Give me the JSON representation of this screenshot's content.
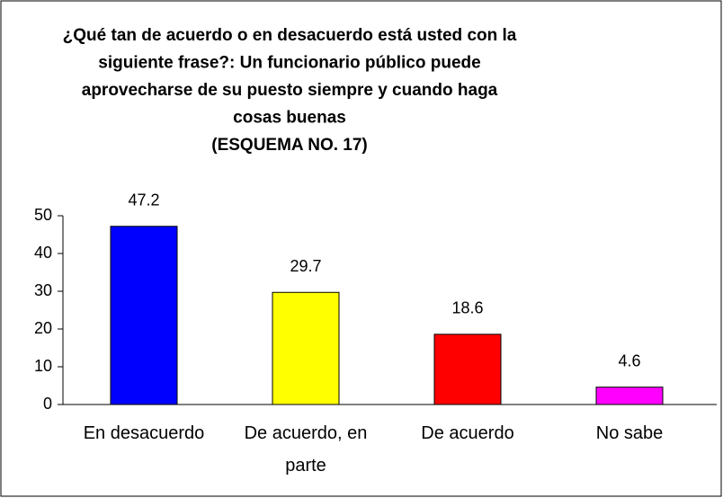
{
  "chart_data": {
    "type": "bar",
    "title": [
      "¿Qué tan de acuerdo o en desacuerdo está usted con la",
      "siguiente frase?: Un funcionario público puede",
      "aprovecharse de su puesto siempre y cuando haga",
      "cosas buenas"
    ],
    "subtitle": "(ESQUEMA NO. 17)",
    "categories": [
      "En desacuerdo",
      "De acuerdo, en parte",
      "De acuerdo",
      "No sabe"
    ],
    "values": [
      47.2,
      29.7,
      18.6,
      4.6
    ],
    "colors": [
      "#0000ff",
      "#ffff00",
      "#ff0000",
      "#ff00ff"
    ],
    "ylim": [
      0,
      50
    ],
    "yticks": [
      0,
      10,
      20,
      30,
      40,
      50
    ],
    "grid": false
  }
}
